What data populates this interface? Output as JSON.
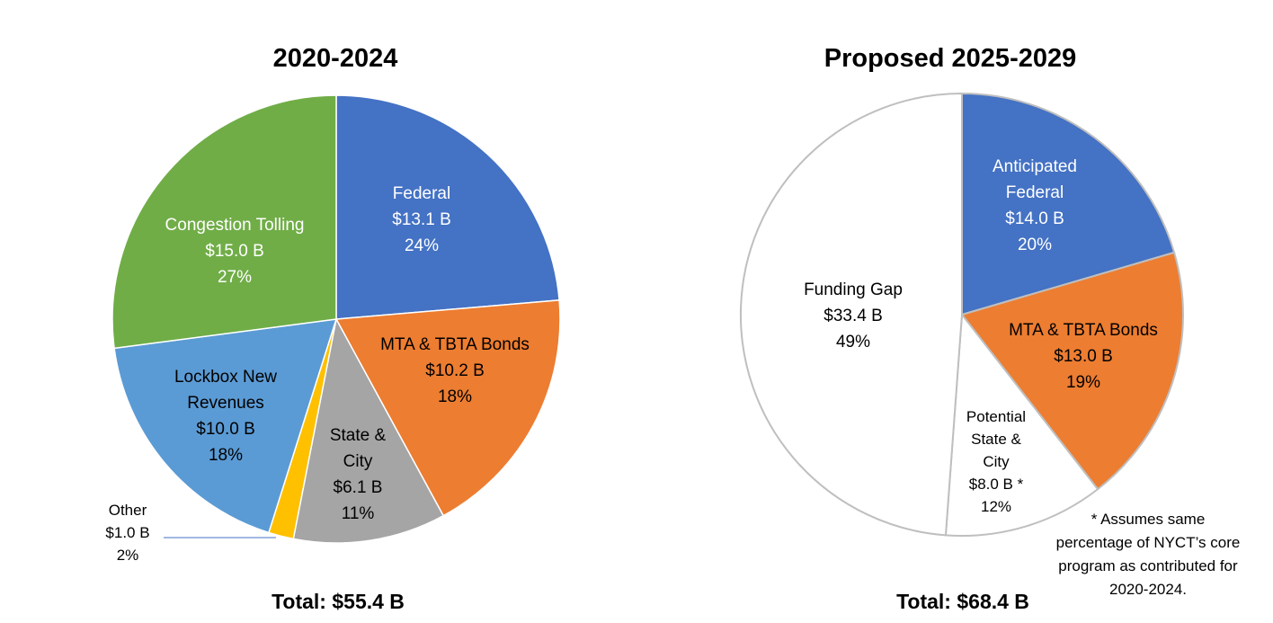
{
  "chart_data": [
    {
      "type": "pie",
      "title": "2020-2024",
      "total_label": "Total: $55.4 B",
      "slices": [
        {
          "name": "Federal",
          "label_lines": [
            "Federal",
            "$13.1 B",
            "24%"
          ],
          "amount": 13.1,
          "percent": 24,
          "color": "#4472C4"
        },
        {
          "name": "MTA & TBTA Bonds",
          "label_lines": [
            "MTA & TBTA Bonds",
            "$10.2 B",
            "18%"
          ],
          "amount": 10.2,
          "percent": 18,
          "color": "#ED7D31"
        },
        {
          "name": "State & City",
          "label_lines": [
            "State &",
            "City",
            "$6.1 B",
            "11%"
          ],
          "amount": 6.1,
          "percent": 11,
          "color": "#A5A5A5"
        },
        {
          "name": "Other",
          "label_lines": [
            "Other",
            "$1.0 B",
            "2%"
          ],
          "amount": 1.0,
          "percent": 2,
          "color": "#FFC000"
        },
        {
          "name": "Lockbox New Revenues",
          "label_lines": [
            "Lockbox New",
            "Revenues",
            "$10.0 B",
            "18%"
          ],
          "amount": 10.0,
          "percent": 18,
          "color": "#5B9BD5"
        },
        {
          "name": "Congestion Tolling",
          "label_lines": [
            "Congestion Tolling",
            "$15.0 B",
            "27%"
          ],
          "amount": 15.0,
          "percent": 27,
          "color": "#70AD47"
        }
      ]
    },
    {
      "type": "pie",
      "title": "Proposed 2025-2029",
      "total_label": "Total: $68.4 B",
      "slices": [
        {
          "name": "Anticipated Federal",
          "label_lines": [
            "Anticipated",
            "Federal",
            "$14.0 B",
            "20%"
          ],
          "amount": 14.0,
          "percent": 20,
          "color": "#4472C4"
        },
        {
          "name": "MTA & TBTA Bonds",
          "label_lines": [
            "MTA & TBTA Bonds",
            "$13.0 B",
            "19%"
          ],
          "amount": 13.0,
          "percent": 19,
          "color": "#ED7D31"
        },
        {
          "name": "Potential State & City",
          "label_lines": [
            "Potential",
            "State &",
            "City",
            "$8.0 B *",
            "12%"
          ],
          "amount": 8.0,
          "percent": 12,
          "color": "#FFFFFF"
        },
        {
          "name": "Funding Gap",
          "label_lines": [
            "Funding Gap",
            "$33.4 B",
            "49%"
          ],
          "amount": 33.4,
          "percent": 49,
          "color": "#FFFFFF"
        }
      ],
      "footnote_lines": [
        "* Assumes same",
        "percentage of NYCT’s core",
        "program as contributed for",
        "2020-2024."
      ]
    }
  ]
}
